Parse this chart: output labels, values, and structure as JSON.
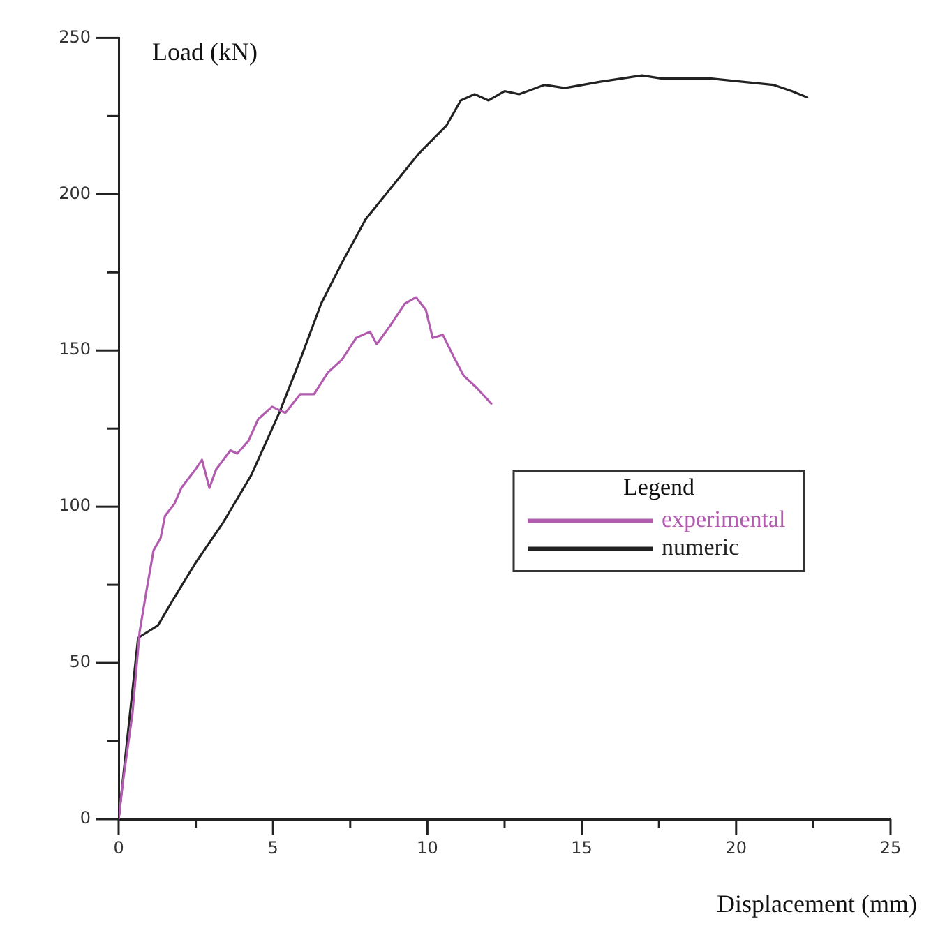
{
  "chart_data": {
    "type": "line",
    "xlabel": "Displacement (mm)",
    "ylabel": "Load (kN)",
    "legend_title": "Legend",
    "legend": "right",
    "grid": false,
    "marker": "none",
    "line_style": "solid",
    "xlim": [
      0,
      25
    ],
    "ylim": [
      0,
      250
    ],
    "xticks": [
      0,
      {
        "value": 2.5,
        "label": null
      },
      5,
      {
        "value": 7.5,
        "label": null
      },
      10,
      {
        "value": 12.5,
        "label": null
      },
      15,
      {
        "value": 17.5,
        "label": null
      },
      20,
      {
        "value": 22.5,
        "label": null
      },
      25
    ],
    "yticks": [
      0,
      {
        "value": 25,
        "label": null
      },
      50,
      {
        "value": 75,
        "label": null
      },
      100,
      {
        "value": 125,
        "label": null
      },
      150,
      {
        "value": 175,
        "label": null
      },
      200,
      {
        "value": 225,
        "label": null
      },
      250
    ],
    "series": [
      {
        "name": "experimental",
        "color": "#b25cb0",
        "x": [
          0,
          0.14,
          0.45,
          0.68,
          0.9,
          1.13,
          1.36,
          1.5,
          1.81,
          2.03,
          2.49,
          2.7,
          2.94,
          3.16,
          3.62,
          3.84,
          4.2,
          4.52,
          4.97,
          5.4,
          5.88,
          6.33,
          6.78,
          7.23,
          7.69,
          8.14,
          8.36,
          8.8,
          9.27,
          9.63,
          9.95,
          10.17,
          10.5,
          10.85,
          11.17,
          11.6,
          12.07
        ],
        "values": [
          0,
          12,
          34,
          60,
          73,
          86,
          90,
          97,
          101,
          106,
          112,
          115,
          106,
          112,
          118,
          117,
          121,
          128,
          132,
          130,
          136,
          136,
          143,
          147,
          154,
          156,
          152,
          158,
          165,
          167,
          163,
          154,
          155,
          148,
          142,
          138,
          133
        ]
      },
      {
        "name": "numeric",
        "color": "#222222",
        "x": [
          0,
          0.63,
          1.27,
          1.81,
          2.49,
          3.39,
          4.29,
          5.2,
          5.88,
          6.56,
          7.23,
          8.0,
          8.82,
          9.72,
          10.62,
          11.08,
          11.53,
          11.98,
          12.5,
          12.97,
          13.8,
          14.45,
          15.6,
          16.95,
          17.6,
          19.2,
          21.2,
          21.8,
          22.3
        ],
        "values": [
          0,
          58,
          62,
          71,
          82,
          95,
          110,
          130,
          147,
          165,
          178,
          192,
          202,
          213,
          222,
          230,
          232,
          230,
          233,
          232,
          235,
          234,
          236,
          238,
          237,
          237,
          235,
          233,
          231
        ]
      }
    ]
  }
}
